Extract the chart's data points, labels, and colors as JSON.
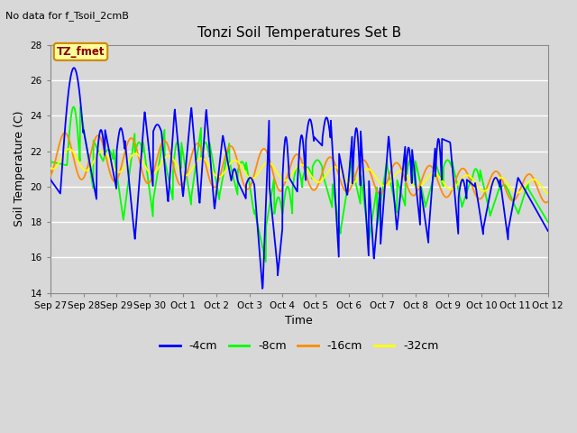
{
  "title": "Tonzi Soil Temperatures Set B",
  "no_data_label": "No data for f_Tsoil_2cmB",
  "xlabel": "Time",
  "ylabel": "Soil Temperature (C)",
  "ylim": [
    14,
    28
  ],
  "yticks": [
    14,
    16,
    18,
    20,
    22,
    24,
    26,
    28
  ],
  "bg_color": "#d8d8d8",
  "plot_bg_color": "#d8d8d8",
  "tz_fmet_label": "TZ_fmet",
  "legend_entries": [
    "-4cm",
    "-8cm",
    "-16cm",
    "-32cm"
  ],
  "line_colors": [
    "#0000ff",
    "#00ff00",
    "#ff8c00",
    "#ffff00"
  ],
  "x_tick_labels": [
    "Sep 27",
    "Sep 28",
    "Sep 29",
    "Sep 30",
    "Oct 1",
    "Oct 2",
    "Oct 3",
    "Oct 4",
    "Oct 5",
    "Oct 6",
    "Oct 7",
    "Oct 8",
    "Oct 9",
    "Oct 10",
    "Oct 11",
    "Oct 12"
  ]
}
